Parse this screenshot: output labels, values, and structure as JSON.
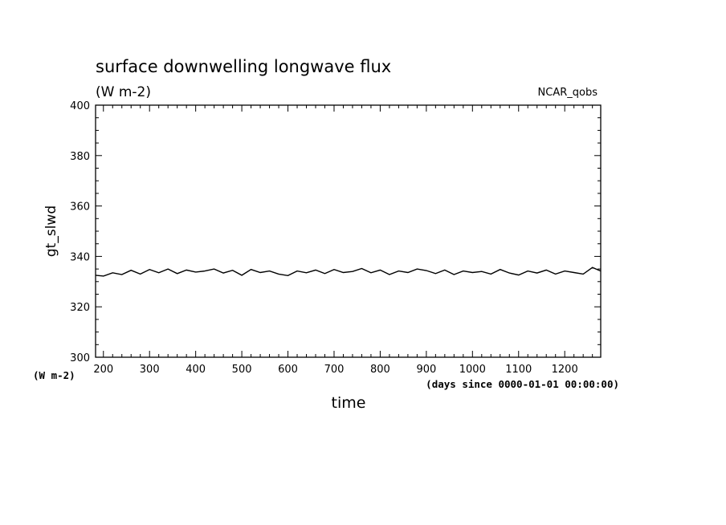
{
  "chart_data": {
    "type": "line",
    "title": "surface downwelling longwave flux",
    "subtitle": "(W m-2)",
    "tag": "NCAR_qobs",
    "xlabel": "time",
    "xunits": "(days since 0000-01-01 00:00:00)",
    "ylabel": "gt_slwd",
    "yunits": "(W m-2)",
    "xlim": [
      183,
      1278
    ],
    "ylim": [
      300,
      400
    ],
    "xticks": [
      "200",
      "300",
      "400",
      "500",
      "600",
      "700",
      "800",
      "900",
      "1000",
      "1100",
      "1200"
    ],
    "yticks": [
      "300",
      "320",
      "340",
      "360",
      "380",
      "400"
    ],
    "grid": false,
    "line_color": "#000000",
    "series": [
      {
        "x": [
          183,
          200,
          220,
          240,
          260,
          280,
          300,
          320,
          340,
          360,
          380,
          400,
          420,
          440,
          460,
          480,
          500,
          520,
          540,
          560,
          580,
          600,
          620,
          640,
          660,
          680,
          700,
          720,
          740,
          760,
          780,
          800,
          820,
          840,
          860,
          880,
          900,
          920,
          940,
          960,
          980,
          1000,
          1020,
          1040,
          1060,
          1080,
          1100,
          1120,
          1140,
          1160,
          1180,
          1200,
          1220,
          1240,
          1260,
          1278
        ],
        "y": [
          332.5,
          332.2,
          333.5,
          332.8,
          334.5,
          333.0,
          334.8,
          333.5,
          335.0,
          333.2,
          334.6,
          333.8,
          334.2,
          335.0,
          333.4,
          334.5,
          332.5,
          334.8,
          333.6,
          334.2,
          333.0,
          332.4,
          334.2,
          333.5,
          334.6,
          333.2,
          334.8,
          333.6,
          334.0,
          335.2,
          333.5,
          334.6,
          332.8,
          334.2,
          333.6,
          335.0,
          334.4,
          333.2,
          334.6,
          332.8,
          334.2,
          333.6,
          334.0,
          333.0,
          334.8,
          333.4,
          332.6,
          334.2,
          333.4,
          334.6,
          333.0,
          334.2,
          333.6,
          333.0,
          335.6,
          334.2
        ]
      }
    ]
  }
}
